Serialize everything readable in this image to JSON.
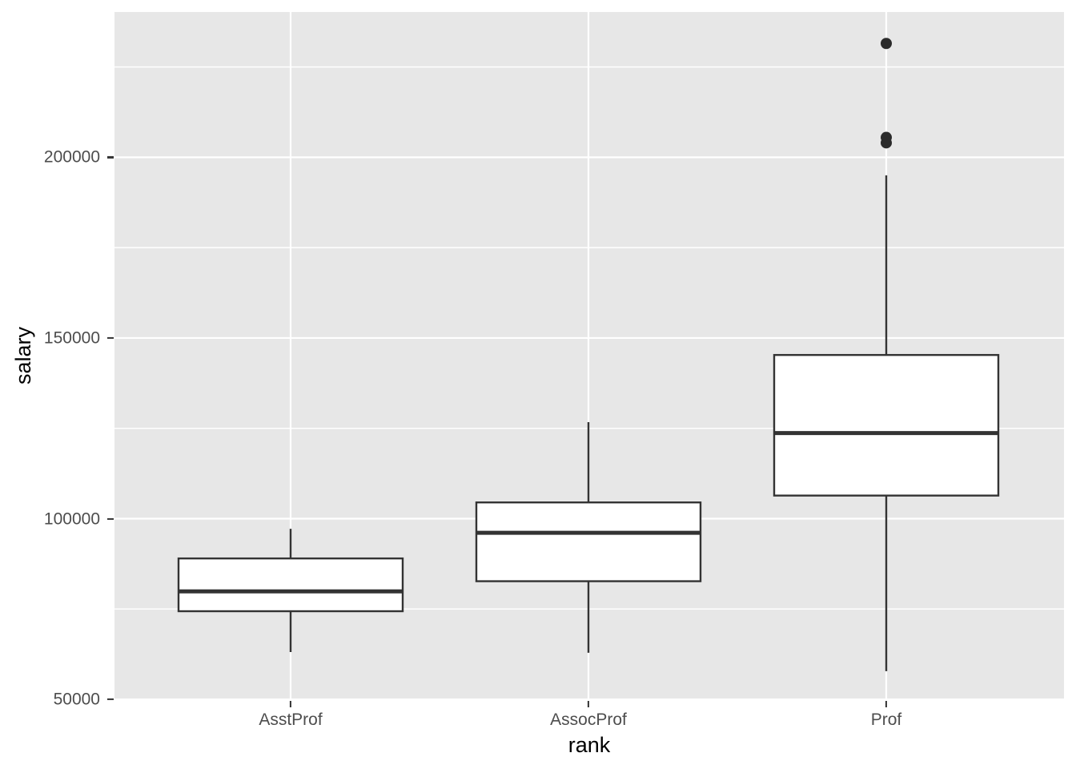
{
  "colors": {
    "background": "#FFFFFF",
    "panel_bg": "#E7E7E7",
    "grid": "#FFFFFF",
    "box_stroke": "#333333",
    "box_fill": "#FFFFFF",
    "outlier": "#2B2B2B",
    "axis_text": "#4D4D4D",
    "axis_title": "#000000",
    "tick_mark": "#333333"
  },
  "chart_data": {
    "type": "boxplot",
    "title": "",
    "xlabel": "rank",
    "ylabel": "salary",
    "categories": [
      "AsstProf",
      "AssocProf",
      "Prof"
    ],
    "series": [
      {
        "name": "AsstProf",
        "whisker_low": 63100,
        "q1": 74400,
        "median": 79900,
        "q3": 89000,
        "whisker_high": 97200,
        "outliers": []
      },
      {
        "name": "AssocProf",
        "whisker_low": 62900,
        "q1": 82700,
        "median": 96100,
        "q3": 104500,
        "whisker_high": 126700,
        "outliers": []
      },
      {
        "name": "Prof",
        "whisker_low": 57800,
        "q1": 106400,
        "median": 123700,
        "q3": 145300,
        "whisker_high": 195000,
        "outliers": [
          204000,
          205500,
          231500
        ]
      }
    ],
    "y_axis": {
      "major_ticks": [
        50000,
        100000,
        150000,
        200000
      ],
      "minor_gridlines": [
        75000,
        125000,
        175000,
        225000
      ],
      "range": [
        49800,
        240200
      ]
    },
    "x_axis": {
      "tick_labels": [
        "AsstProf",
        "AssocProf",
        "Prof"
      ]
    },
    "grid": true,
    "legend_position": "none",
    "theme": "ggplot2-grey"
  }
}
